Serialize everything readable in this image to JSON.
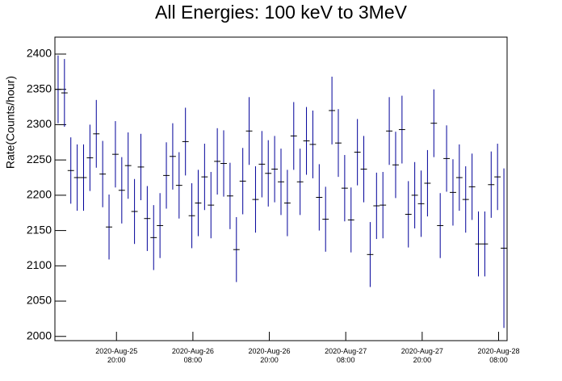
{
  "chart_data": {
    "type": "errorbar",
    "title": "All Energies:  100 keV to 3MeV",
    "y_label": "Rate(Counts/hour)",
    "x": [
      "2020-08-25T10:50",
      "2020-08-25T11:50",
      "2020-08-25T12:50",
      "2020-08-25T13:50",
      "2020-08-25T14:50",
      "2020-08-25T15:50",
      "2020-08-25T16:50",
      "2020-08-25T17:50",
      "2020-08-25T18:50",
      "2020-08-25T19:50",
      "2020-08-25T20:50",
      "2020-08-25T21:50",
      "2020-08-25T22:50",
      "2020-08-25T23:50",
      "2020-08-26T00:50",
      "2020-08-26T01:50",
      "2020-08-26T02:50",
      "2020-08-26T03:50",
      "2020-08-26T04:50",
      "2020-08-26T05:50",
      "2020-08-26T06:50",
      "2020-08-26T07:50",
      "2020-08-26T08:50",
      "2020-08-26T09:50",
      "2020-08-26T10:50",
      "2020-08-26T11:50",
      "2020-08-26T12:50",
      "2020-08-26T13:50",
      "2020-08-26T14:50",
      "2020-08-26T15:50",
      "2020-08-26T16:50",
      "2020-08-26T17:50",
      "2020-08-26T18:50",
      "2020-08-26T19:50",
      "2020-08-26T20:50",
      "2020-08-26T21:50",
      "2020-08-26T22:50",
      "2020-08-26T23:50",
      "2020-08-27T00:50",
      "2020-08-27T01:50",
      "2020-08-27T02:50",
      "2020-08-27T03:50",
      "2020-08-27T04:50",
      "2020-08-27T05:50",
      "2020-08-27T06:50",
      "2020-08-27T07:50",
      "2020-08-27T08:50",
      "2020-08-27T09:50",
      "2020-08-27T10:50",
      "2020-08-27T11:50",
      "2020-08-27T12:50",
      "2020-08-27T13:50",
      "2020-08-27T14:50",
      "2020-08-27T15:50",
      "2020-08-27T16:50",
      "2020-08-27T17:50",
      "2020-08-27T18:50",
      "2020-08-27T19:50",
      "2020-08-27T20:50",
      "2020-08-27T21:50",
      "2020-08-27T22:50",
      "2020-08-27T23:50",
      "2020-08-28T00:50",
      "2020-08-28T01:50",
      "2020-08-28T02:50",
      "2020-08-28T03:50",
      "2020-08-28T04:50",
      "2020-08-28T05:50",
      "2020-08-28T06:50",
      "2020-08-28T07:50",
      "2020-08-28T08:50"
    ],
    "series": [
      {
        "color": "#000099",
        "values": [
          2350,
          2345,
          2235,
          2225,
          2225,
          2253,
          2287,
          2230,
          2155,
          2258,
          2207,
          2242,
          2177,
          2240,
          2167,
          2140,
          2157,
          2228,
          2255,
          2214,
          2276,
          2171,
          2189,
          2226,
          2186,
          2248,
          2245,
          2199,
          2123,
          2220,
          2291,
          2194,
          2244,
          2231,
          2237,
          2219,
          2189,
          2284,
          2219,
          2277,
          2272,
          2197,
          2166,
          2320,
          2274,
          2210,
          2165,
          2261,
          2237,
          2116,
          2185,
          2186,
          2291,
          2243,
          2293,
          2173,
          2200,
          2188,
          2217,
          2302,
          2157,
          2252,
          2204,
          2225,
          2194,
          2212,
          2131,
          2131,
          2215,
          2226,
          2125
        ],
        "errors": [
          48,
          48,
          47,
          47,
          47,
          47,
          48,
          47,
          46,
          47,
          47,
          47,
          46,
          47,
          46,
          46,
          46,
          47,
          47,
          47,
          48,
          46,
          47,
          47,
          47,
          47,
          47,
          47,
          46,
          47,
          48,
          47,
          47,
          47,
          47,
          47,
          47,
          48,
          47,
          48,
          48,
          47,
          46,
          48,
          48,
          47,
          46,
          47,
          47,
          46,
          47,
          47,
          48,
          47,
          48,
          47,
          47,
          47,
          47,
          48,
          46,
          47,
          47,
          47,
          47,
          47,
          46,
          46,
          47,
          47,
          113
        ]
      }
    ],
    "xlim": [
      "2020-08-25T10:20",
      "2020-08-28T09:20"
    ],
    "xticks": [
      {
        "value": "2020-08-25T20:00",
        "label": [
          "2020-Aug-25",
          "20:00"
        ]
      },
      {
        "value": "2020-08-26T08:00",
        "label": [
          "2020-Aug-26",
          "08:00"
        ]
      },
      {
        "value": "2020-08-26T20:00",
        "label": [
          "2020-Aug-26",
          "20:00"
        ]
      },
      {
        "value": "2020-08-27T08:00",
        "label": [
          "2020-Aug-27",
          "08:00"
        ]
      },
      {
        "value": "2020-08-27T20:00",
        "label": [
          "2020-Aug-27",
          "20:00"
        ]
      },
      {
        "value": "2020-08-28T08:00",
        "label": [
          "2020-Aug-28",
          "08:00"
        ]
      }
    ],
    "ylim": [
      1994,
      2424
    ],
    "yticks": [
      2000,
      2050,
      2100,
      2150,
      2200,
      2250,
      2300,
      2350,
      2400
    ]
  }
}
